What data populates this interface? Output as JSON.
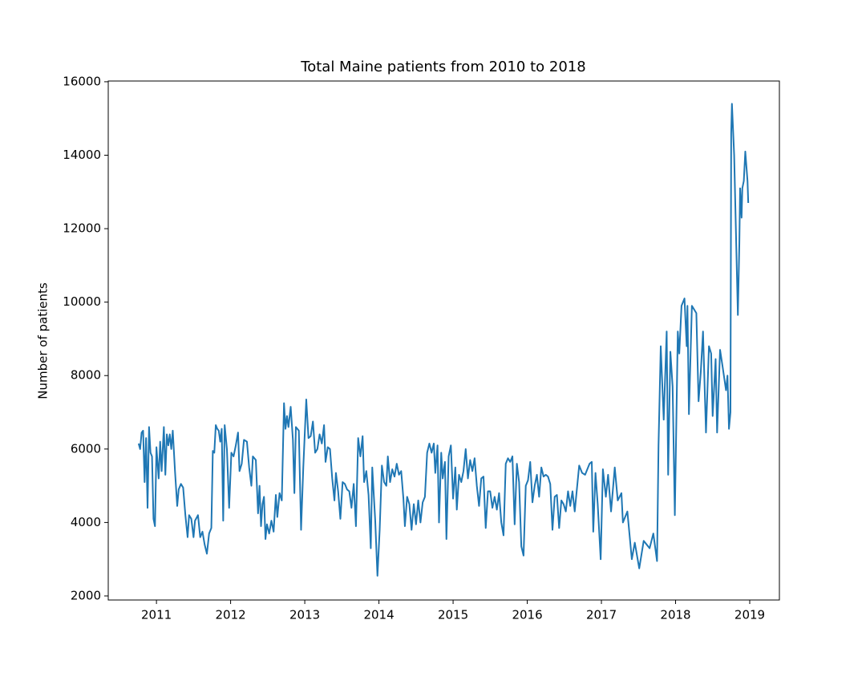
{
  "chart_data": {
    "type": "line",
    "title": "Total Maine patients from 2010 to 2018",
    "y_label": "Number of patients",
    "color": "#1f77b4",
    "x": [
      2010.76,
      2010.78,
      2010.8,
      2010.82,
      2010.84,
      2010.86,
      2010.88,
      2010.9,
      2010.92,
      2010.94,
      2010.96,
      2010.98,
      2011.0,
      2011.03,
      2011.05,
      2011.07,
      2011.1,
      2011.12,
      2011.14,
      2011.16,
      2011.18,
      2011.2,
      2011.22,
      2011.25,
      2011.28,
      2011.3,
      2011.33,
      2011.36,
      2011.39,
      2011.42,
      2011.44,
      2011.47,
      2011.5,
      2011.52,
      2011.56,
      2011.59,
      2011.62,
      2011.65,
      2011.68,
      2011.71,
      2011.74,
      2011.76,
      2011.78,
      2011.8,
      2011.82,
      2011.84,
      2011.86,
      2011.88,
      2011.9,
      2011.92,
      2011.95,
      2011.98,
      2012.01,
      2012.04,
      2012.07,
      2012.1,
      2012.12,
      2012.15,
      2012.18,
      2012.22,
      2012.25,
      2012.28,
      2012.3,
      2012.34,
      2012.37,
      2012.39,
      2012.41,
      2012.43,
      2012.45,
      2012.47,
      2012.49,
      2012.52,
      2012.55,
      2012.58,
      2012.61,
      2012.63,
      2012.66,
      2012.69,
      2012.72,
      2012.74,
      2012.76,
      2012.78,
      2012.81,
      2012.84,
      2012.86,
      2012.88,
      2012.92,
      2012.95,
      2012.98,
      2013.02,
      2013.05,
      2013.08,
      2013.11,
      2013.14,
      2013.17,
      2013.2,
      2013.23,
      2013.26,
      2013.28,
      2013.31,
      2013.34,
      2013.37,
      2013.4,
      2013.42,
      2013.45,
      2013.48,
      2013.51,
      2013.54,
      2013.57,
      2013.6,
      2013.63,
      2013.66,
      2013.69,
      2013.72,
      2013.75,
      2013.78,
      2013.8,
      2013.83,
      2013.86,
      2013.89,
      2013.91,
      2013.95,
      2013.98,
      2014.01,
      2014.04,
      2014.07,
      2014.1,
      2014.12,
      2014.15,
      2014.18,
      2014.21,
      2014.24,
      2014.27,
      2014.3,
      2014.33,
      2014.35,
      2014.38,
      2014.41,
      2014.44,
      2014.47,
      2014.5,
      2014.53,
      2014.56,
      2014.59,
      2014.62,
      2014.65,
      2014.68,
      2014.71,
      2014.74,
      2014.76,
      2014.79,
      2014.81,
      2014.84,
      2014.86,
      2014.89,
      2014.91,
      2014.94,
      2014.97,
      2015.0,
      2015.03,
      2015.05,
      2015.08,
      2015.11,
      2015.14,
      2015.17,
      2015.2,
      2015.23,
      2015.26,
      2015.29,
      2015.32,
      2015.35,
      2015.38,
      2015.41,
      2015.44,
      2015.47,
      2015.5,
      2015.53,
      2015.56,
      2015.59,
      2015.62,
      2015.65,
      2015.68,
      2015.71,
      2015.74,
      2015.77,
      2015.8,
      2015.83,
      2015.86,
      2015.89,
      2015.92,
      2015.95,
      2015.98,
      2016.01,
      2016.04,
      2016.07,
      2016.1,
      2016.13,
      2016.16,
      2016.19,
      2016.22,
      2016.25,
      2016.28,
      2016.31,
      2016.34,
      2016.37,
      2016.4,
      2016.43,
      2016.46,
      2016.49,
      2016.52,
      2016.55,
      2016.58,
      2016.61,
      2016.64,
      2016.7,
      2016.74,
      2016.78,
      2016.84,
      2016.87,
      2016.89,
      2016.92,
      2016.95,
      2016.99,
      2017.02,
      2017.06,
      2017.09,
      2017.13,
      2017.18,
      2017.22,
      2017.27,
      2017.29,
      2017.35,
      2017.41,
      2017.45,
      2017.51,
      2017.57,
      2017.65,
      2017.7,
      2017.75,
      2017.77,
      2017.8,
      2017.84,
      2017.88,
      2017.9,
      2017.93,
      2017.96,
      2017.99,
      2018.03,
      2018.05,
      2018.08,
      2018.12,
      2018.15,
      2018.16,
      2018.18,
      2018.22,
      2018.28,
      2018.31,
      2018.34,
      2018.37,
      2018.41,
      2018.45,
      2018.48,
      2018.5,
      2018.54,
      2018.56,
      2018.6,
      2018.63,
      2018.68,
      2018.7,
      2018.72,
      2018.74,
      2018.75,
      2018.76,
      2018.79,
      2018.84,
      2018.86,
      2018.87,
      2018.89,
      2018.9,
      2018.92,
      2018.94,
      2018.97,
      2018.98
    ],
    "values": [
      6150,
      6000,
      6450,
      6500,
      5100,
      6300,
      4400,
      6600,
      5900,
      5800,
      4100,
      3900,
      6050,
      5200,
      6200,
      5400,
      6600,
      5300,
      6400,
      6100,
      6400,
      6000,
      6500,
      5400,
      4450,
      4900,
      5050,
      4950,
      4200,
      3600,
      4200,
      4100,
      3600,
      4050,
      4200,
      3600,
      3750,
      3400,
      3150,
      3700,
      3850,
      5950,
      5900,
      6650,
      6550,
      6500,
      6200,
      6550,
      4050,
      6650,
      6000,
      4400,
      5900,
      5800,
      6100,
      6450,
      5400,
      5600,
      6250,
      6200,
      5500,
      5000,
      5800,
      5700,
      4250,
      5000,
      3900,
      4500,
      4700,
      3550,
      3950,
      3700,
      4050,
      3750,
      4750,
      4150,
      4800,
      4600,
      7250,
      6550,
      6900,
      6600,
      7150,
      6250,
      4800,
      6600,
      6500,
      3800,
      5500,
      7350,
      6300,
      6350,
      6750,
      5900,
      6000,
      6400,
      6150,
      6650,
      5650,
      6050,
      6000,
      5200,
      4600,
      5350,
      4850,
      4100,
      5100,
      5050,
      4900,
      4850,
      4400,
      5050,
      3900,
      6300,
      5800,
      6350,
      5100,
      5400,
      4750,
      3300,
      5500,
      4050,
      2550,
      3800,
      5550,
      5100,
      5000,
      5800,
      5100,
      5450,
      5250,
      5600,
      5300,
      5400,
      4650,
      3900,
      4700,
      4500,
      3800,
      4500,
      3950,
      4600,
      4000,
      4550,
      4700,
      5900,
      6150,
      5900,
      6150,
      5350,
      6100,
      4000,
      5900,
      5200,
      5650,
      3550,
      5800,
      6100,
      4650,
      5500,
      4350,
      5300,
      5100,
      5400,
      6000,
      5200,
      5700,
      5400,
      5750,
      5000,
      4450,
      5200,
      5250,
      3850,
      4850,
      4850,
      4400,
      4700,
      4350,
      4800,
      4000,
      3650,
      5600,
      5750,
      5650,
      5800,
      3950,
      5600,
      5100,
      3350,
      3100,
      5000,
      5150,
      5650,
      4550,
      5000,
      5300,
      4700,
      5500,
      5250,
      5300,
      5250,
      5050,
      3800,
      4700,
      4750,
      3850,
      4600,
      4500,
      4300,
      4850,
      4450,
      4850,
      4300,
      5550,
      5350,
      5300,
      5600,
      5650,
      3750,
      5350,
      4500,
      3000,
      5450,
      4700,
      5300,
      4300,
      5500,
      4600,
      4800,
      4000,
      4300,
      3000,
      3450,
      2750,
      3500,
      3300,
      3700,
      2950,
      6100,
      8800,
      6800,
      9200,
      5300,
      8650,
      7700,
      4200,
      9200,
      8600,
      9900,
      10100,
      8800,
      9900,
      6950,
      9900,
      9700,
      7300,
      8100,
      9200,
      6450,
      8800,
      8600,
      6900,
      8450,
      6450,
      8700,
      8300,
      7600,
      8000,
      6550,
      7000,
      14600,
      15400,
      14000,
      9650,
      11600,
      13100,
      12300,
      13100,
      13300,
      14100,
      13300,
      12700
    ],
    "xlim": [
      2010.35,
      2019.4
    ],
    "xticks": [
      2011,
      2012,
      2013,
      2014,
      2015,
      2016,
      2017,
      2018,
      2019
    ],
    "ylim": [
      1890,
      16020
    ],
    "yticks": [
      2000,
      4000,
      6000,
      8000,
      10000,
      12000,
      14000,
      16000
    ]
  }
}
